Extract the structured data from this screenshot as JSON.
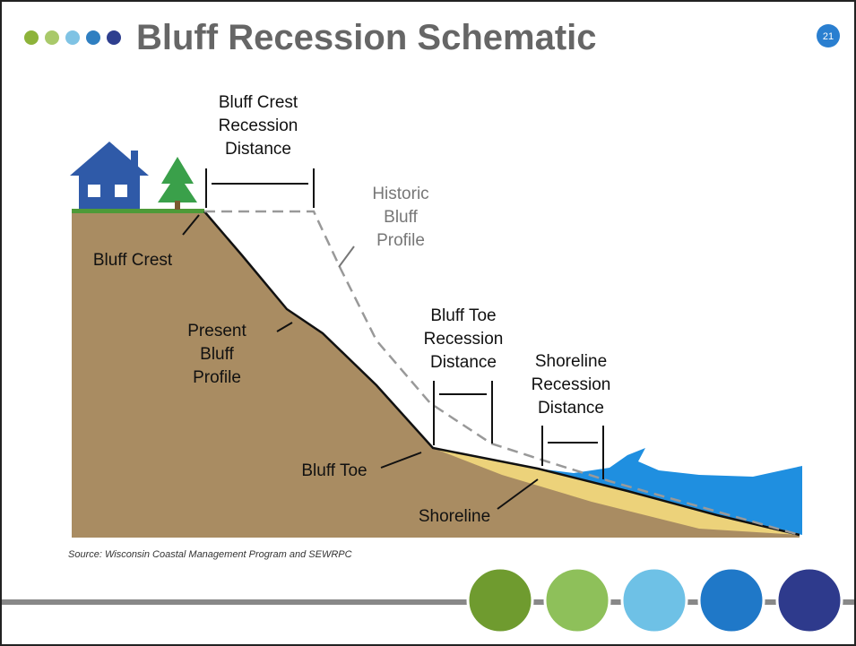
{
  "header": {
    "title": "Bluff Recession Schematic",
    "page_number": "21"
  },
  "diagram": {
    "crest_recession": [
      "Bluff Crest",
      "Recession",
      "Distance"
    ],
    "historic_profile": [
      "Historic",
      "Bluff",
      "Profile"
    ],
    "bluff_crest": "Bluff Crest",
    "present_profile": [
      "Present",
      "Bluff",
      "Profile"
    ],
    "toe_recession": [
      "Bluff Toe",
      "Recession",
      "Distance"
    ],
    "shoreline_recession": [
      "Shoreline",
      "Recession",
      "Distance"
    ],
    "bluff_toe": "Bluff Toe",
    "shoreline": "Shoreline",
    "source": "Source: Wisconsin Coastal Management Program and SEWRPC"
  }
}
